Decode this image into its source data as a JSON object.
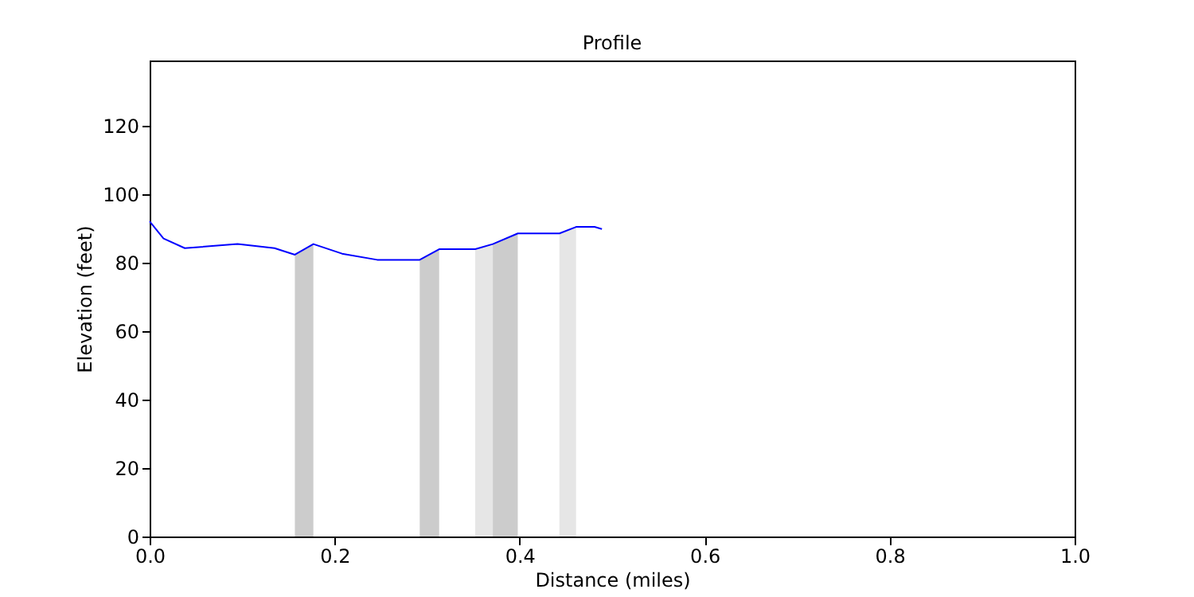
{
  "chart_data": {
    "type": "line",
    "title": "Profile",
    "xlabel": "Distance (miles)",
    "ylabel": "Elevation (feet)",
    "xlim": [
      0,
      1
    ],
    "xticks": [
      {
        "value": 0,
        "label": "0.0"
      },
      {
        "value": 0.2,
        "label": "0.2"
      },
      {
        "value": 0.4,
        "label": "0.4"
      },
      {
        "value": 0.6,
        "label": "0.6"
      },
      {
        "value": 0.8,
        "label": "0.8"
      },
      {
        "value": 1,
        "label": "1.0"
      }
    ],
    "ylim": [
      0,
      139
    ],
    "yticks": [
      0,
      20,
      40,
      60,
      80,
      100,
      120
    ],
    "grid": false,
    "series": [
      {
        "type": "area",
        "color": "#cccccc",
        "x": [
          0.157,
          0.177
        ],
        "values": [
          82.3,
          85.4
        ]
      },
      {
        "type": "area",
        "color": "#cccccc",
        "x": [
          0.292,
          0.313
        ],
        "values": [
          80.8,
          83.9
        ]
      },
      {
        "type": "area",
        "color": "#e6e6e6",
        "x": [
          0.352,
          0.371
        ],
        "values": [
          83.9,
          85.4
        ]
      },
      {
        "type": "area",
        "color": "#cccccc",
        "x": [
          0.371,
          0.398
        ],
        "values": [
          85.4,
          88.5
        ]
      },
      {
        "type": "area",
        "color": "#e6e6e6",
        "x": [
          0.443,
          0.461
        ],
        "values": [
          88.5,
          90.4
        ]
      },
      {
        "type": "line",
        "color": "#0000ff",
        "x": [
          0,
          0.015,
          0.038,
          0.095,
          0.135,
          0.157,
          0.177,
          0.208,
          0.246,
          0.292,
          0.313,
          0.352,
          0.371,
          0.398,
          0.443,
          0.461,
          0.481,
          0.489
        ],
        "values": [
          92.0,
          87.0,
          84.2,
          85.4,
          84.2,
          82.3,
          85.4,
          82.6,
          80.8,
          80.8,
          83.9,
          83.9,
          85.4,
          88.5,
          88.5,
          90.4,
          90.4,
          89.8
        ]
      }
    ]
  }
}
